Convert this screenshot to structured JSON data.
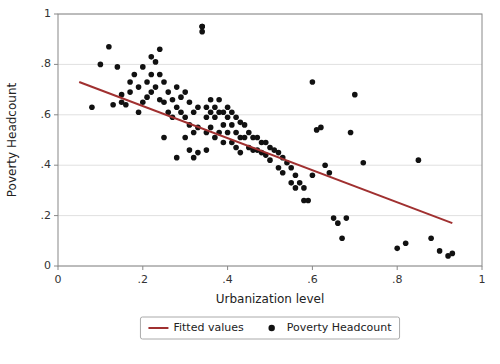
{
  "chart_data": {
    "type": "scatter",
    "x_label": "Urbanization level",
    "y_label": "Poverty Headcount",
    "xlim": [
      0,
      1
    ],
    "ylim": [
      0,
      1
    ],
    "xticks": [
      0,
      {
        "value": 0.2,
        "label": ".2"
      },
      {
        "value": 0.4,
        "label": ".4"
      },
      {
        "value": 0.6,
        "label": ".6"
      },
      {
        "value": 0.8,
        "label": ".8"
      },
      1
    ],
    "yticks": [
      0,
      {
        "value": 0.2,
        "label": ".2"
      },
      {
        "value": 0.4,
        "label": ".4"
      },
      {
        "value": 0.6,
        "label": ".6"
      },
      {
        "value": 0.8,
        "label": ".8"
      },
      1
    ],
    "grid": "y",
    "legend": "bottom",
    "series": [
      {
        "name": "Fitted values",
        "type": "line",
        "color": "#a03030",
        "x": [
          0.05,
          0.93
        ],
        "values": [
          0.73,
          0.17
        ]
      },
      {
        "name": "Poverty Headcount",
        "type": "scatter",
        "color": "#111111",
        "x": [
          0.08,
          0.1,
          0.12,
          0.13,
          0.14,
          0.15,
          0.15,
          0.16,
          0.17,
          0.17,
          0.18,
          0.19,
          0.19,
          0.2,
          0.2,
          0.21,
          0.21,
          0.22,
          0.22,
          0.22,
          0.23,
          0.23,
          0.24,
          0.24,
          0.24,
          0.25,
          0.25,
          0.25,
          0.26,
          0.26,
          0.27,
          0.27,
          0.28,
          0.28,
          0.28,
          0.29,
          0.29,
          0.3,
          0.3,
          0.3,
          0.31,
          0.31,
          0.31,
          0.32,
          0.32,
          0.32,
          0.33,
          0.33,
          0.33,
          0.34,
          0.34,
          0.34,
          0.35,
          0.35,
          0.35,
          0.35,
          0.36,
          0.36,
          0.36,
          0.37,
          0.37,
          0.37,
          0.38,
          0.38,
          0.38,
          0.39,
          0.39,
          0.39,
          0.4,
          0.4,
          0.4,
          0.41,
          0.41,
          0.41,
          0.42,
          0.42,
          0.42,
          0.43,
          0.43,
          0.43,
          0.44,
          0.44,
          0.45,
          0.45,
          0.46,
          0.46,
          0.47,
          0.47,
          0.48,
          0.48,
          0.49,
          0.49,
          0.5,
          0.5,
          0.51,
          0.52,
          0.52,
          0.53,
          0.53,
          0.54,
          0.55,
          0.55,
          0.56,
          0.56,
          0.57,
          0.58,
          0.58,
          0.59,
          0.6,
          0.6,
          0.61,
          0.62,
          0.63,
          0.64,
          0.65,
          0.66,
          0.67,
          0.68,
          0.69,
          0.7,
          0.72,
          0.8,
          0.82,
          0.85,
          0.88,
          0.9,
          0.92,
          0.93
        ],
        "values": [
          0.63,
          0.8,
          0.87,
          0.64,
          0.79,
          0.68,
          0.65,
          0.64,
          0.69,
          0.73,
          0.76,
          0.71,
          0.61,
          0.79,
          0.65,
          0.73,
          0.67,
          0.83,
          0.76,
          0.69,
          0.81,
          0.71,
          0.86,
          0.76,
          0.66,
          0.51,
          0.65,
          0.73,
          0.69,
          0.61,
          0.66,
          0.59,
          0.71,
          0.63,
          0.43,
          0.67,
          0.61,
          0.69,
          0.59,
          0.51,
          0.65,
          0.56,
          0.46,
          0.61,
          0.53,
          0.43,
          0.63,
          0.55,
          0.45,
          0.95,
          0.95,
          0.93,
          0.63,
          0.59,
          0.53,
          0.46,
          0.66,
          0.61,
          0.55,
          0.63,
          0.59,
          0.51,
          0.66,
          0.61,
          0.53,
          0.61,
          0.56,
          0.49,
          0.63,
          0.59,
          0.53,
          0.61,
          0.56,
          0.49,
          0.59,
          0.53,
          0.47,
          0.57,
          0.51,
          0.45,
          0.56,
          0.51,
          0.53,
          0.47,
          0.51,
          0.46,
          0.51,
          0.46,
          0.49,
          0.45,
          0.49,
          0.44,
          0.47,
          0.42,
          0.46,
          0.45,
          0.39,
          0.43,
          0.37,
          0.41,
          0.39,
          0.33,
          0.36,
          0.31,
          0.33,
          0.31,
          0.26,
          0.26,
          0.73,
          0.36,
          0.54,
          0.55,
          0.4,
          0.37,
          0.19,
          0.17,
          0.11,
          0.19,
          0.53,
          0.68,
          0.41,
          0.07,
          0.09,
          0.42,
          0.11,
          0.06,
          0.04,
          0.05
        ]
      }
    ]
  }
}
